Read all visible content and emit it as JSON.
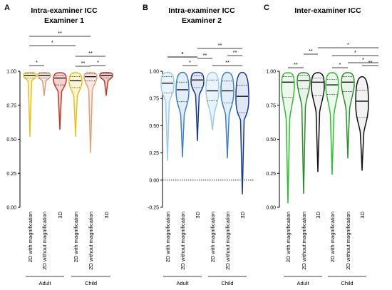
{
  "figure": {
    "panels": [
      {
        "letter": "A",
        "title_lines": [
          "Intra-examiner ICC",
          "Examiner 1"
        ]
      },
      {
        "letter": "B",
        "title_lines": [
          "Intra-examiner ICC",
          "Examiner 2"
        ]
      },
      {
        "letter": "C",
        "title_lines": [
          "Inter-examiner ICC"
        ]
      }
    ]
  },
  "chart_data": [
    {
      "type": "violin",
      "panel": "A",
      "title": "Intra-examiner ICC",
      "subtitle": "Examiner 1",
      "ylim": [
        0,
        1
      ],
      "yticks": [
        "0.00",
        "0.25",
        "0.50",
        "0.75",
        "1.00"
      ],
      "zero_line": false,
      "categories": [
        "2D with magnification",
        "2D without magnification",
        "3D",
        "2D with magnification",
        "2D without magnification",
        "3D"
      ],
      "groups": [
        {
          "label": "Adult",
          "span": [
            0,
            2
          ]
        },
        {
          "label": "Child",
          "span": [
            3,
            5
          ]
        }
      ],
      "colors": [
        "#e8c020",
        "#d9a27a",
        "#c0392b",
        "#e8c020",
        "#d9a27a",
        "#c0392b"
      ],
      "fills": [
        "#fdf6cf",
        "#fbe6e2",
        "#f7d3d0",
        "#fdf6cf",
        "#fbe6e2",
        "#f7d3d0"
      ],
      "series": [
        {
          "name": "2D with magnification",
          "min": 0.52,
          "q1": 0.95,
          "median": 0.97,
          "q3": 0.985,
          "max": 0.99,
          "neck": 0.93
        },
        {
          "name": "2D without magnification",
          "min": 0.82,
          "q1": 0.95,
          "median": 0.97,
          "q3": 0.985,
          "max": 0.99,
          "neck": 0.93
        },
        {
          "name": "3D",
          "min": 0.57,
          "q1": 0.9,
          "median": 0.95,
          "q3": 0.97,
          "max": 0.99,
          "neck": 0.85
        },
        {
          "name": "2D with magnification",
          "min": 0.52,
          "q1": 0.88,
          "median": 0.93,
          "q3": 0.96,
          "max": 0.99,
          "neck": 0.82
        },
        {
          "name": "2D without magnification",
          "min": 0.4,
          "q1": 0.93,
          "median": 0.96,
          "q3": 0.98,
          "max": 0.99,
          "neck": 0.86
        },
        {
          "name": "3D",
          "min": 0.82,
          "q1": 0.95,
          "median": 0.97,
          "q3": 0.985,
          "max": 0.99,
          "neck": 0.93
        }
      ],
      "significance": [
        {
          "from": 0,
          "to": 1,
          "label": "*"
        },
        {
          "from": 0,
          "to": 3,
          "label": "*"
        },
        {
          "from": 0,
          "to": 4,
          "label": "**"
        },
        {
          "from": 3,
          "to": 4,
          "label": "**"
        },
        {
          "from": 3,
          "to": 5,
          "label": "**"
        },
        {
          "from": 4,
          "to": 5,
          "label": "*"
        }
      ]
    },
    {
      "type": "violin",
      "panel": "B",
      "title": "Intra-examiner ICC",
      "subtitle": "Examiner 2",
      "ylim": [
        -0.25,
        1
      ],
      "yticks": [
        "-0.25",
        "0.00",
        "0.25",
        "0.50",
        "0.75",
        "1.00"
      ],
      "zero_line": true,
      "categories": [
        "2D with magnification",
        "2D without magnification",
        "3D",
        "2D with magnification",
        "2D without magnification",
        "3D"
      ],
      "groups": [
        {
          "label": "Adult",
          "span": [
            0,
            2
          ]
        },
        {
          "label": "Child",
          "span": [
            3,
            5
          ]
        }
      ],
      "colors": [
        "#9ec9ec",
        "#3d7fcf",
        "#1a3a8a",
        "#9ec9ec",
        "#3d7fcf",
        "#1a3a8a"
      ],
      "fills": [
        "#eaf4fc",
        "#e2eefa",
        "#e0e8f6",
        "#eaf4fc",
        "#e2eefa",
        "#e0e8f6"
      ],
      "series": [
        {
          "name": "2D with magnification",
          "min": 0.18,
          "q1": 0.8,
          "median": 0.89,
          "q3": 0.95,
          "max": 0.99,
          "neck": 0.72
        },
        {
          "name": "2D without magnification",
          "min": 0.21,
          "q1": 0.72,
          "median": 0.83,
          "q3": 0.9,
          "max": 0.99,
          "neck": 0.6
        },
        {
          "name": "3D",
          "min": 0.36,
          "q1": 0.85,
          "median": 0.92,
          "q3": 0.96,
          "max": 0.99,
          "neck": 0.78
        },
        {
          "name": "2D with magnification",
          "min": 0.46,
          "q1": 0.73,
          "median": 0.82,
          "q3": 0.92,
          "max": 0.99,
          "neck": 0.6
        },
        {
          "name": "2D without magnification",
          "min": 0.2,
          "q1": 0.71,
          "median": 0.82,
          "q3": 0.91,
          "max": 0.99,
          "neck": 0.6
        },
        {
          "name": "3D",
          "min": -0.13,
          "q1": 0.62,
          "median": 0.77,
          "q3": 0.87,
          "max": 0.99,
          "neck": 0.55
        }
      ],
      "significance": [
        {
          "from": 1,
          "to": 2,
          "label": "*"
        },
        {
          "from": 2,
          "to": 3,
          "label": "**"
        },
        {
          "from": 0,
          "to": 2,
          "label": "*"
        },
        {
          "from": 0,
          "to": 2,
          "label": "*"
        },
        {
          "from": 2,
          "to": 5,
          "label": "**"
        },
        {
          "from": 4,
          "to": 5,
          "label": "**"
        },
        {
          "from": 3,
          "to": 5,
          "label": "**"
        }
      ]
    },
    {
      "type": "violin",
      "panel": "C",
      "title": "Inter-examiner ICC",
      "subtitle": "",
      "ylim": [
        0,
        1
      ],
      "yticks": [
        "0.00",
        "0.25",
        "0.50",
        "0.75",
        "1.00"
      ],
      "zero_line": false,
      "categories": [
        "2D with magnification",
        "2D without magnification",
        "3D",
        "2D with magnification",
        "2D without magnification",
        "3D"
      ],
      "groups": [
        {
          "label": "Adult",
          "span": [
            0,
            2
          ]
        },
        {
          "label": "Child",
          "span": [
            3,
            5
          ]
        }
      ],
      "colors": [
        "#2fbe2f",
        "#2e8b2e",
        "#111111",
        "#2fbe2f",
        "#2e8b2e",
        "#111111"
      ],
      "fills": [
        "#ecf9ec",
        "#e8f4e8",
        "#f2f2f2",
        "#ecf9ec",
        "#e8f4e8",
        "#f2f2f2"
      ],
      "series": [
        {
          "name": "2D with magnification",
          "min": 0.03,
          "q1": 0.81,
          "median": 0.92,
          "q3": 0.96,
          "max": 0.99,
          "neck": 0.65
        },
        {
          "name": "2D without magnification",
          "min": 0.1,
          "q1": 0.87,
          "median": 0.93,
          "q3": 0.97,
          "max": 0.99,
          "neck": 0.74
        },
        {
          "name": "3D",
          "min": 0.26,
          "q1": 0.82,
          "median": 0.92,
          "q3": 0.95,
          "max": 0.99,
          "neck": 0.7
        },
        {
          "name": "2D with magnification",
          "min": 0.24,
          "q1": 0.83,
          "median": 0.9,
          "q3": 0.94,
          "max": 0.99,
          "neck": 0.68
        },
        {
          "name": "2D without magnification",
          "min": 0.36,
          "q1": 0.85,
          "median": 0.92,
          "q3": 0.96,
          "max": 0.99,
          "neck": 0.72
        },
        {
          "name": "3D",
          "min": 0.27,
          "q1": 0.66,
          "median": 0.78,
          "q3": 0.86,
          "max": 0.96,
          "neck": 0.55
        }
      ],
      "significance": [
        {
          "from": 0,
          "to": 1,
          "label": "**"
        },
        {
          "from": 0,
          "to": 2,
          "label": "**"
        },
        {
          "from": 2,
          "to": 5,
          "label": "*"
        },
        {
          "from": 2,
          "to": 5,
          "label": "*"
        },
        {
          "from": 3,
          "to": 4,
          "label": "*"
        },
        {
          "from": 3,
          "to": 5,
          "label": "*"
        },
        {
          "from": 4,
          "to": 5,
          "label": "**"
        }
      ]
    }
  ]
}
